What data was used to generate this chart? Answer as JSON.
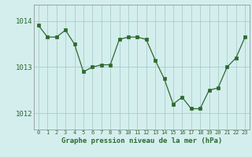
{
  "x": [
    0,
    1,
    2,
    3,
    4,
    5,
    6,
    7,
    8,
    9,
    10,
    11,
    12,
    13,
    14,
    15,
    16,
    17,
    18,
    19,
    20,
    21,
    22,
    23
  ],
  "y": [
    1013.9,
    1013.65,
    1013.65,
    1013.8,
    1013.5,
    1012.9,
    1013.0,
    1013.05,
    1013.05,
    1013.6,
    1013.65,
    1013.65,
    1013.6,
    1013.15,
    1012.75,
    1012.2,
    1012.35,
    1012.1,
    1012.1,
    1012.5,
    1012.55,
    1013.0,
    1013.2,
    1013.65
  ],
  "line_color": "#2d6a2d",
  "marker_color": "#2d6a2d",
  "bg_color": "#d4eeee",
  "grid_color": "#aacccc",
  "xlabel": "Graphe pression niveau de la mer (hPa)",
  "xlabel_color": "#2d6a2d",
  "tick_color": "#2d6a2d",
  "yticks": [
    1012,
    1013,
    1014
  ],
  "ylim": [
    1011.65,
    1014.35
  ],
  "xlim": [
    -0.5,
    23.5
  ],
  "xticks": [
    0,
    1,
    2,
    3,
    4,
    5,
    6,
    7,
    8,
    9,
    10,
    11,
    12,
    13,
    14,
    15,
    16,
    17,
    18,
    19,
    20,
    21,
    22,
    23
  ]
}
